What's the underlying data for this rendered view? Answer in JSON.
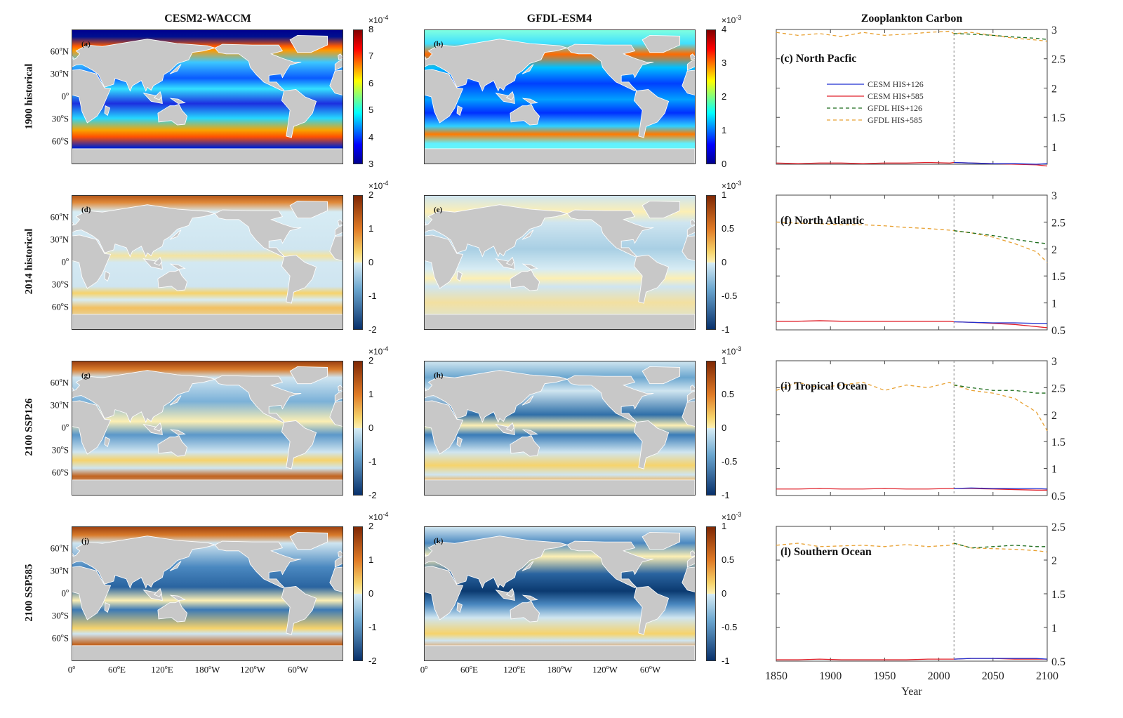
{
  "columns": [
    "CESM2-WACCM",
    "GFDL-ESM4",
    "Zooplankton Carbon"
  ],
  "rows": [
    "1900 historical",
    "2014 historical",
    "2100 SSP126",
    "2100 SSP585"
  ],
  "lat_ticks": [
    {
      "v": "60",
      "h": "N"
    },
    {
      "v": "30",
      "h": "N"
    },
    {
      "v": "0",
      "h": ""
    },
    {
      "v": "30",
      "h": "S"
    },
    {
      "v": "60",
      "h": "S"
    }
  ],
  "lon_ticks": [
    {
      "v": "0",
      "h": ""
    },
    {
      "v": "60",
      "h": "E"
    },
    {
      "v": "120",
      "h": "E"
    },
    {
      "v": "180",
      "h": "W"
    },
    {
      "v": "120",
      "h": "W"
    },
    {
      "v": "60",
      "h": "W"
    }
  ],
  "maps": [
    {
      "label": "(a)",
      "colormap": "jet",
      "colorbar": {
        "exponent": "-4",
        "ticks": [
          "8",
          "7",
          "6",
          "5",
          "4",
          "3"
        ]
      }
    },
    {
      "label": "(b)",
      "colormap": "jet",
      "colorbar": {
        "exponent": "-3",
        "ticks": [
          "4",
          "3",
          "2",
          "1",
          "0"
        ]
      }
    },
    {
      "label": "(d)",
      "colormap": "diverging",
      "colorbar": {
        "exponent": "-4",
        "ticks": [
          "2",
          "1",
          "0",
          "-1",
          "-2"
        ]
      }
    },
    {
      "label": "(e)",
      "colormap": "diverging",
      "colorbar": {
        "exponent": "-3",
        "ticks": [
          "1",
          "0.5",
          "0",
          "-0.5",
          "-1"
        ]
      }
    },
    {
      "label": "(g)",
      "colormap": "diverging",
      "colorbar": {
        "exponent": "-4",
        "ticks": [
          "2",
          "1",
          "0",
          "-1",
          "-2"
        ]
      }
    },
    {
      "label": "(h)",
      "colormap": "diverging",
      "colorbar": {
        "exponent": "-3",
        "ticks": [
          "1",
          "0.5",
          "0",
          "-0.5",
          "-1"
        ]
      }
    },
    {
      "label": "(j)",
      "colormap": "diverging",
      "colorbar": {
        "exponent": "-4",
        "ticks": [
          "2",
          "1",
          "0",
          "-1",
          "-2"
        ]
      }
    },
    {
      "label": "(k)",
      "colormap": "diverging",
      "colorbar": {
        "exponent": "-3",
        "ticks": [
          "1",
          "0.5",
          "0",
          "-0.5",
          "-1"
        ]
      }
    }
  ],
  "colors": {
    "cesm_126": "#1f2fd0",
    "cesm_585": "#e0202a",
    "gfdl_126": "#1a6b1a",
    "gfdl_585": "#e8a030",
    "land": "#c8c8c8"
  },
  "chart_data": [
    {
      "type": "line",
      "title": "(c) North Pacfic",
      "xlim": [
        1850,
        2100
      ],
      "ylim": [
        0.7,
        3
      ],
      "yticks": [
        1,
        1.5,
        2,
        2.5,
        3
      ],
      "xticks": [
        1850,
        1900,
        1950,
        2000,
        2050,
        2100
      ],
      "vline": 2014,
      "legend": "center-left",
      "series": [
        {
          "name": "CESM HIS+126",
          "x": [
            2014,
            2030,
            2050,
            2070,
            2090,
            2100
          ],
          "y": [
            0.73,
            0.72,
            0.71,
            0.71,
            0.7,
            0.71
          ]
        },
        {
          "name": "CESM HIS+585",
          "x": [
            1850,
            1870,
            1890,
            1910,
            1930,
            1950,
            1970,
            1990,
            2010,
            2014,
            2030,
            2050,
            2070,
            2090,
            2100
          ],
          "y": [
            0.72,
            0.71,
            0.72,
            0.72,
            0.71,
            0.72,
            0.72,
            0.73,
            0.72,
            0.73,
            0.72,
            0.71,
            0.7,
            0.69,
            0.67
          ]
        },
        {
          "name": "GFDL HIS+126",
          "x": [
            2014,
            2030,
            2050,
            2070,
            2090,
            2100
          ],
          "y": [
            2.93,
            2.92,
            2.9,
            2.87,
            2.85,
            2.83
          ]
        },
        {
          "name": "GFDL HIS+585",
          "x": [
            1850,
            1870,
            1890,
            1910,
            1930,
            1950,
            1970,
            1990,
            2010,
            2014,
            2030,
            2050,
            2070,
            2090,
            2100
          ],
          "y": [
            2.95,
            2.9,
            2.93,
            2.88,
            2.95,
            2.9,
            2.92,
            2.95,
            2.97,
            2.93,
            2.95,
            2.9,
            2.85,
            2.82,
            2.8
          ]
        }
      ]
    },
    {
      "type": "line",
      "title": "(f) North Atlantic",
      "xlim": [
        1850,
        2100
      ],
      "ylim": [
        0.5,
        3
      ],
      "yticks": [
        0.5,
        1,
        1.5,
        2,
        2.5,
        3
      ],
      "xticks": [
        1850,
        1900,
        1950,
        2000,
        2050,
        2100
      ],
      "vline": 2014,
      "series": [
        {
          "name": "CESM HIS+126",
          "x": [
            2014,
            2030,
            2050,
            2070,
            2090,
            2100
          ],
          "y": [
            0.65,
            0.64,
            0.63,
            0.63,
            0.62,
            0.62
          ]
        },
        {
          "name": "CESM HIS+585",
          "x": [
            1850,
            1870,
            1890,
            1910,
            1930,
            1950,
            1970,
            1990,
            2010,
            2014,
            2030,
            2050,
            2070,
            2090,
            2100
          ],
          "y": [
            0.66,
            0.66,
            0.67,
            0.66,
            0.66,
            0.66,
            0.66,
            0.66,
            0.66,
            0.65,
            0.64,
            0.62,
            0.6,
            0.56,
            0.54
          ]
        },
        {
          "name": "GFDL HIS+126",
          "x": [
            2014,
            2030,
            2050,
            2070,
            2090,
            2100
          ],
          "y": [
            2.34,
            2.3,
            2.25,
            2.18,
            2.12,
            2.1
          ]
        },
        {
          "name": "GFDL HIS+585",
          "x": [
            1850,
            1870,
            1890,
            1910,
            1930,
            1950,
            1970,
            1990,
            2010,
            2014,
            2030,
            2050,
            2070,
            2090,
            2100
          ],
          "y": [
            2.5,
            2.48,
            2.47,
            2.45,
            2.45,
            2.43,
            2.4,
            2.38,
            2.35,
            2.34,
            2.3,
            2.22,
            2.1,
            1.95,
            1.75
          ]
        }
      ]
    },
    {
      "type": "line",
      "title": "(i) Tropical Ocean",
      "xlim": [
        1850,
        2100
      ],
      "ylim": [
        0.5,
        3
      ],
      "yticks": [
        0.5,
        1,
        1.5,
        2,
        2.5,
        3
      ],
      "xticks": [
        1850,
        1900,
        1950,
        2000,
        2050,
        2100
      ],
      "vline": 2014,
      "series": [
        {
          "name": "CESM HIS+126",
          "x": [
            2014,
            2030,
            2050,
            2070,
            2090,
            2100
          ],
          "y": [
            0.63,
            0.64,
            0.63,
            0.63,
            0.63,
            0.62
          ]
        },
        {
          "name": "CESM HIS+585",
          "x": [
            1850,
            1870,
            1890,
            1910,
            1930,
            1950,
            1970,
            1990,
            2010,
            2014,
            2030,
            2050,
            2070,
            2090,
            2100
          ],
          "y": [
            0.62,
            0.62,
            0.63,
            0.62,
            0.62,
            0.63,
            0.62,
            0.62,
            0.63,
            0.63,
            0.63,
            0.62,
            0.61,
            0.6,
            0.6
          ]
        },
        {
          "name": "GFDL HIS+126",
          "x": [
            2014,
            2030,
            2050,
            2070,
            2090,
            2100
          ],
          "y": [
            2.55,
            2.5,
            2.45,
            2.45,
            2.4,
            2.4
          ]
        },
        {
          "name": "GFDL HIS+585",
          "x": [
            1850,
            1870,
            1890,
            1910,
            1930,
            1950,
            1970,
            1990,
            2010,
            2014,
            2030,
            2050,
            2070,
            2090,
            2100
          ],
          "y": [
            2.45,
            2.6,
            2.5,
            2.55,
            2.6,
            2.45,
            2.55,
            2.5,
            2.6,
            2.55,
            2.45,
            2.4,
            2.3,
            2.05,
            1.7
          ]
        }
      ]
    },
    {
      "type": "line",
      "title": "(l) Southern Ocean",
      "xlim": [
        1850,
        2100
      ],
      "ylim": [
        0.5,
        2.5
      ],
      "yticks": [
        0.5,
        1,
        1.5,
        2,
        2.5
      ],
      "xticks": [
        1850,
        1900,
        1950,
        2000,
        2050,
        2100
      ],
      "xlabel": "Year",
      "vline": 2014,
      "series": [
        {
          "name": "CESM HIS+126",
          "x": [
            2014,
            2030,
            2050,
            2070,
            2090,
            2100
          ],
          "y": [
            0.53,
            0.54,
            0.54,
            0.54,
            0.54,
            0.53
          ]
        },
        {
          "name": "CESM HIS+585",
          "x": [
            1850,
            1870,
            1890,
            1910,
            1930,
            1950,
            1970,
            1990,
            2010,
            2014,
            2030,
            2050,
            2070,
            2090,
            2100
          ],
          "y": [
            0.52,
            0.52,
            0.53,
            0.52,
            0.52,
            0.52,
            0.52,
            0.53,
            0.53,
            0.53,
            0.54,
            0.54,
            0.53,
            0.53,
            0.53
          ]
        },
        {
          "name": "GFDL HIS+126",
          "x": [
            2014,
            2030,
            2050,
            2070,
            2090,
            2100
          ],
          "y": [
            2.25,
            2.18,
            2.2,
            2.22,
            2.2,
            2.2
          ]
        },
        {
          "name": "GFDL HIS+585",
          "x": [
            1850,
            1870,
            1890,
            1910,
            1930,
            1950,
            1970,
            1990,
            2010,
            2014,
            2030,
            2050,
            2070,
            2090,
            2100
          ],
          "y": [
            2.22,
            2.25,
            2.2,
            2.21,
            2.22,
            2.2,
            2.23,
            2.2,
            2.22,
            2.25,
            2.18,
            2.17,
            2.16,
            2.14,
            2.12
          ]
        }
      ]
    }
  ]
}
